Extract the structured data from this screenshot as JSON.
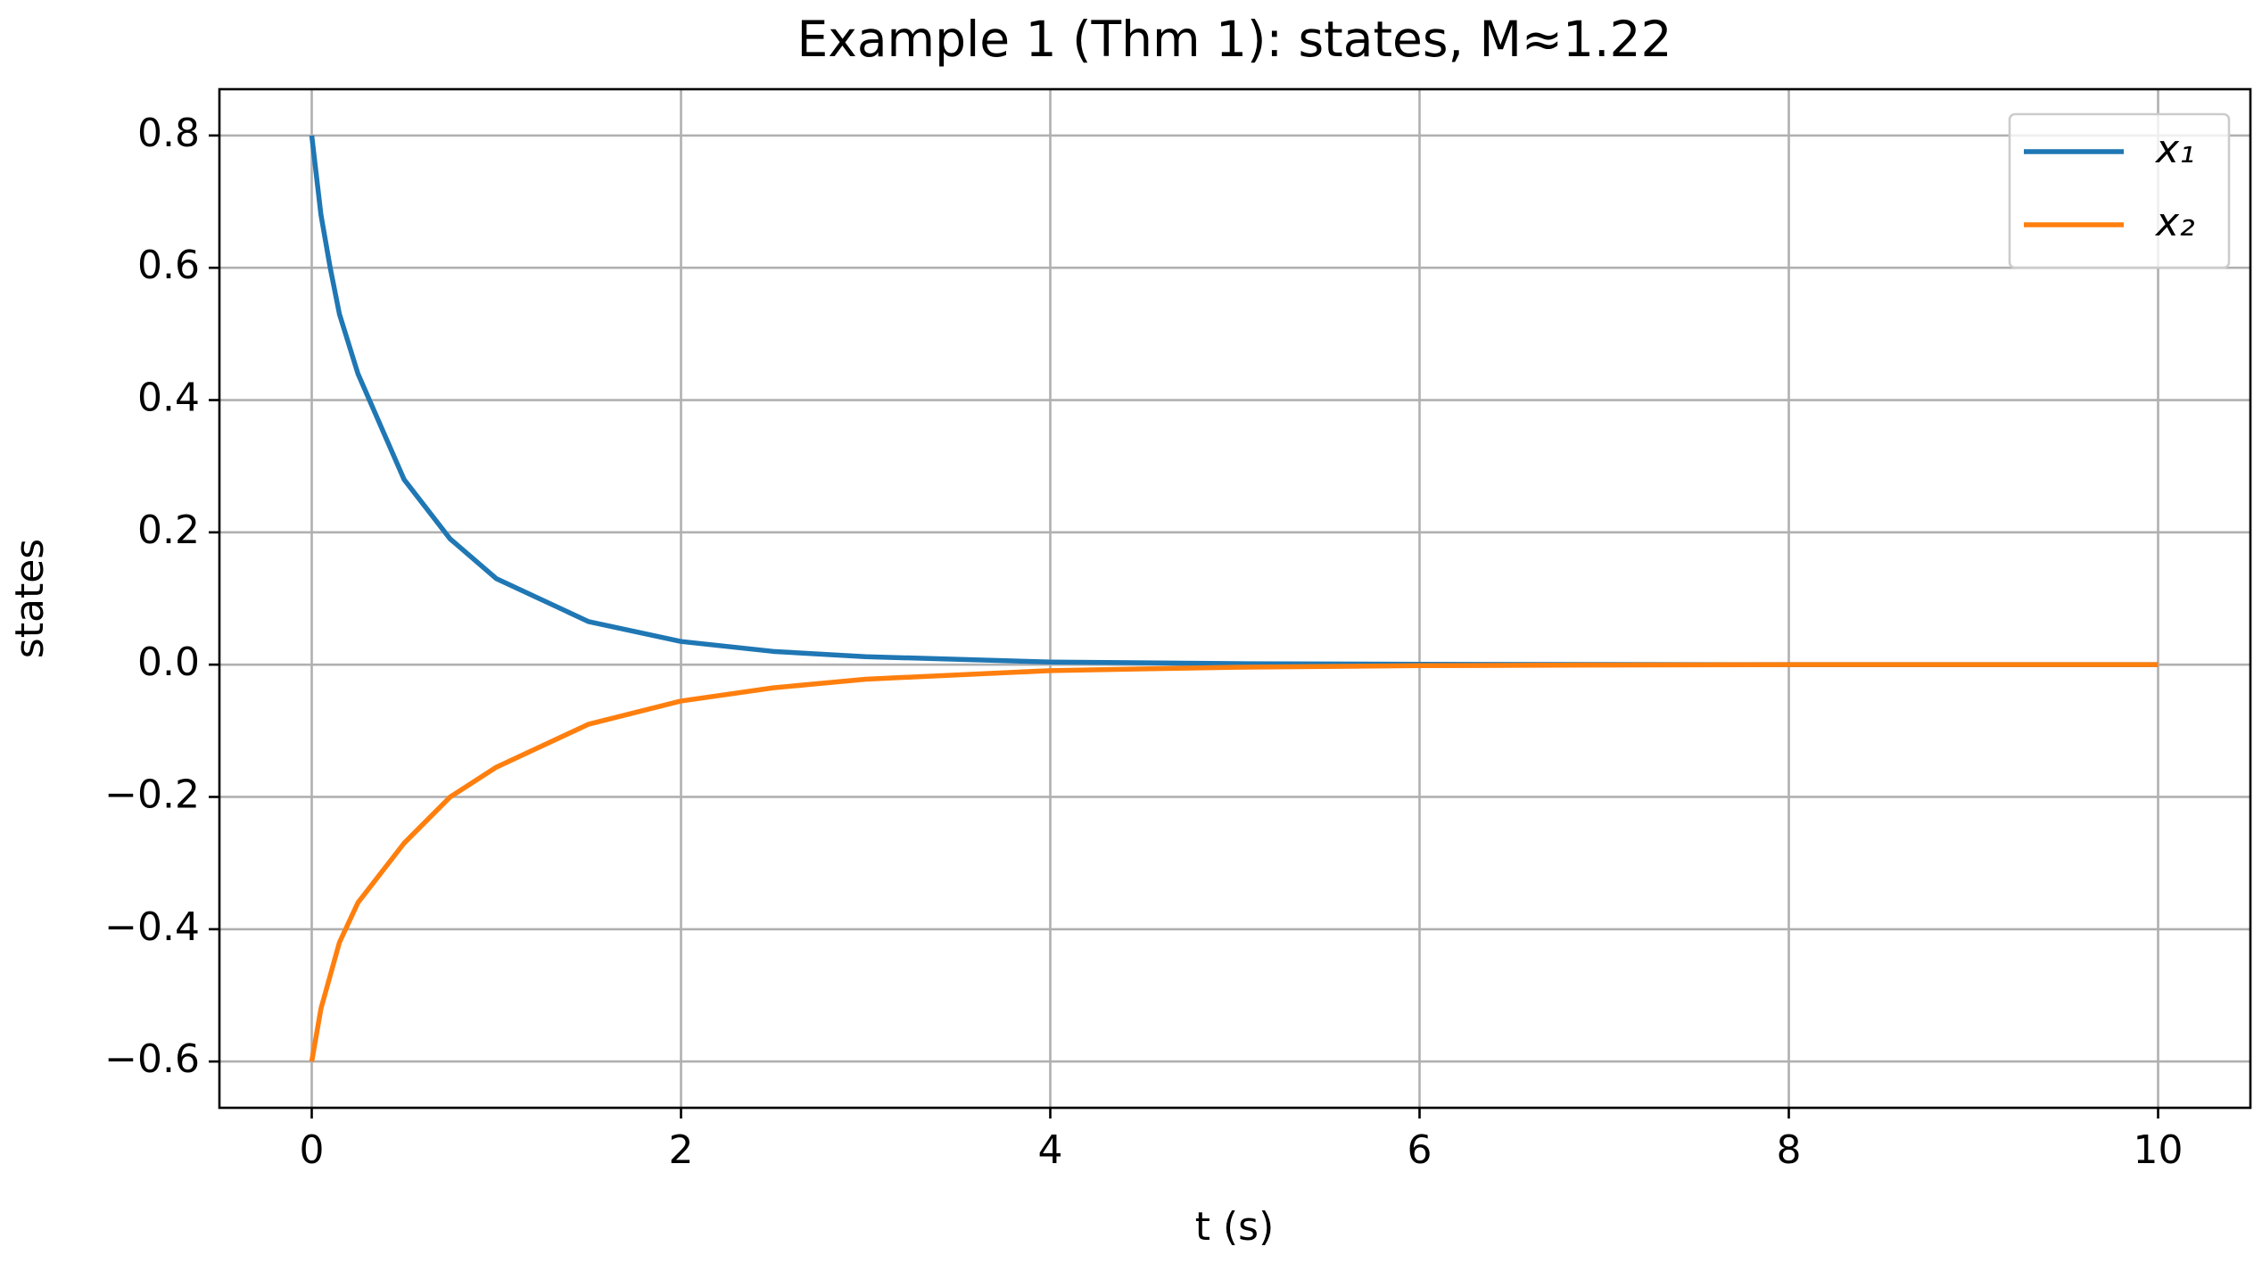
{
  "chart_data": {
    "type": "line",
    "title": "Example 1 (Thm 1): states, M≈1.22",
    "x_label": "t (s)",
    "y_label": "states",
    "x": [
      0,
      0.05,
      0.1,
      0.15,
      0.25,
      0.5,
      0.75,
      1,
      1.5,
      2,
      2.5,
      3,
      4,
      5,
      6,
      7,
      8,
      9,
      10
    ],
    "series": [
      {
        "name": "x₁",
        "color": "#1f77b4",
        "values": [
          0.8,
          0.68,
          0.6,
          0.53,
          0.44,
          0.28,
          0.19,
          0.13,
          0.065,
          0.035,
          0.02,
          0.012,
          0.004,
          0.0015,
          0.0005,
          0.0002,
          0,
          0,
          0
        ]
      },
      {
        "name": "x₂",
        "color": "#ff7f0e",
        "values": [
          -0.6,
          -0.52,
          -0.47,
          -0.42,
          -0.36,
          -0.27,
          -0.2,
          -0.155,
          -0.09,
          -0.055,
          -0.035,
          -0.022,
          -0.009,
          -0.004,
          -0.0015,
          -0.0006,
          0,
          0,
          0
        ]
      }
    ],
    "xlim": [
      -0.5,
      10.5
    ],
    "ylim": [
      -0.67,
      0.87
    ],
    "xticks": [
      0,
      2,
      4,
      6,
      8,
      10
    ],
    "yticks": [
      {
        "value": -0.6,
        "label": "−0.6"
      },
      {
        "value": -0.4,
        "label": "−0.4"
      },
      {
        "value": -0.2,
        "label": "−0.2"
      },
      {
        "value": 0,
        "label": "0.0"
      },
      0.2,
      0.4,
      0.6,
      0.8
    ],
    "grid": true,
    "legend": "upper right"
  }
}
